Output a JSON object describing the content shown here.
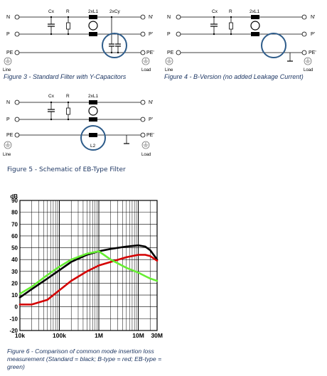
{
  "figures": [
    {
      "caption": "Figure 3 - Standard Filter with Y-Capacitors",
      "component_labels": [
        "Cx",
        "R",
        "2xL1",
        "2xCy"
      ],
      "line_labels_left": [
        "N",
        "P",
        "PE"
      ],
      "line_labels_right": [
        "N'",
        "P'",
        "PE'"
      ],
      "end_left": "Line",
      "end_right": "Load"
    },
    {
      "caption": "Figure 4 - B-Version (no added Leakage Current)",
      "component_labels": [
        "Cx",
        "R",
        "2xL1"
      ],
      "line_labels_left": [
        "N",
        "P",
        "PE"
      ],
      "line_labels_right": [
        "N'",
        "P'",
        "PE'"
      ],
      "end_left": "Line",
      "end_right": "Load"
    },
    {
      "caption": "Figure 5 - Schematic of EB-Type Filter",
      "component_labels": [
        "Cx",
        "R",
        "2xL1",
        "L2"
      ],
      "line_labels_left": [
        "N",
        "P",
        "PE"
      ],
      "line_labels_right": [
        "N'",
        "P'",
        "PE'"
      ],
      "end_left": "Line",
      "end_right": "Load"
    }
  ],
  "figure6_caption": "Figure 6 - Comparison of common mode insertion loss measurement (Standard = black; B-type = red; EB-type = green)",
  "chart_data": {
    "type": "line",
    "title": "",
    "ylabel": "dB",
    "xlabel": "",
    "x_scale": "log",
    "xlim": [
      10000,
      30000000
    ],
    "ylim": [
      -20,
      90
    ],
    "x_tick_labels": [
      "10k",
      "100k",
      "1M",
      "10M",
      "30M"
    ],
    "x_tick_values": [
      10000,
      100000,
      1000000,
      10000000,
      30000000
    ],
    "y_ticks": [
      90,
      80,
      70,
      60,
      50,
      40,
      30,
      20,
      10,
      0,
      -10,
      -20
    ],
    "grid": true,
    "legend": "none",
    "series": [
      {
        "color": "#000000",
        "points": [
          [
            10000,
            8
          ],
          [
            20000,
            15
          ],
          [
            50000,
            24
          ],
          [
            100000,
            31
          ],
          [
            200000,
            38
          ],
          [
            500000,
            44
          ],
          [
            1000000,
            47
          ],
          [
            2000000,
            49
          ],
          [
            5000000,
            51
          ],
          [
            10000000,
            52
          ],
          [
            15000000,
            51
          ],
          [
            20000000,
            48
          ],
          [
            30000000,
            40
          ]
        ]
      },
      {
        "color": "#d40000",
        "points": [
          [
            10000,
            2
          ],
          [
            20000,
            2
          ],
          [
            50000,
            6
          ],
          [
            100000,
            14
          ],
          [
            200000,
            22
          ],
          [
            500000,
            30
          ],
          [
            1000000,
            35
          ],
          [
            2000000,
            38
          ],
          [
            5000000,
            42
          ],
          [
            10000000,
            44
          ],
          [
            15000000,
            44
          ],
          [
            20000000,
            43
          ],
          [
            30000000,
            39
          ]
        ]
      },
      {
        "color": "#66ee33",
        "points": [
          [
            10000,
            11
          ],
          [
            20000,
            17
          ],
          [
            50000,
            27
          ],
          [
            100000,
            34
          ],
          [
            200000,
            40
          ],
          [
            500000,
            45
          ],
          [
            1000000,
            47
          ],
          [
            2000000,
            40
          ],
          [
            5000000,
            33
          ],
          [
            10000000,
            29
          ],
          [
            15000000,
            26
          ],
          [
            20000000,
            24
          ],
          [
            30000000,
            22
          ]
        ]
      }
    ]
  }
}
